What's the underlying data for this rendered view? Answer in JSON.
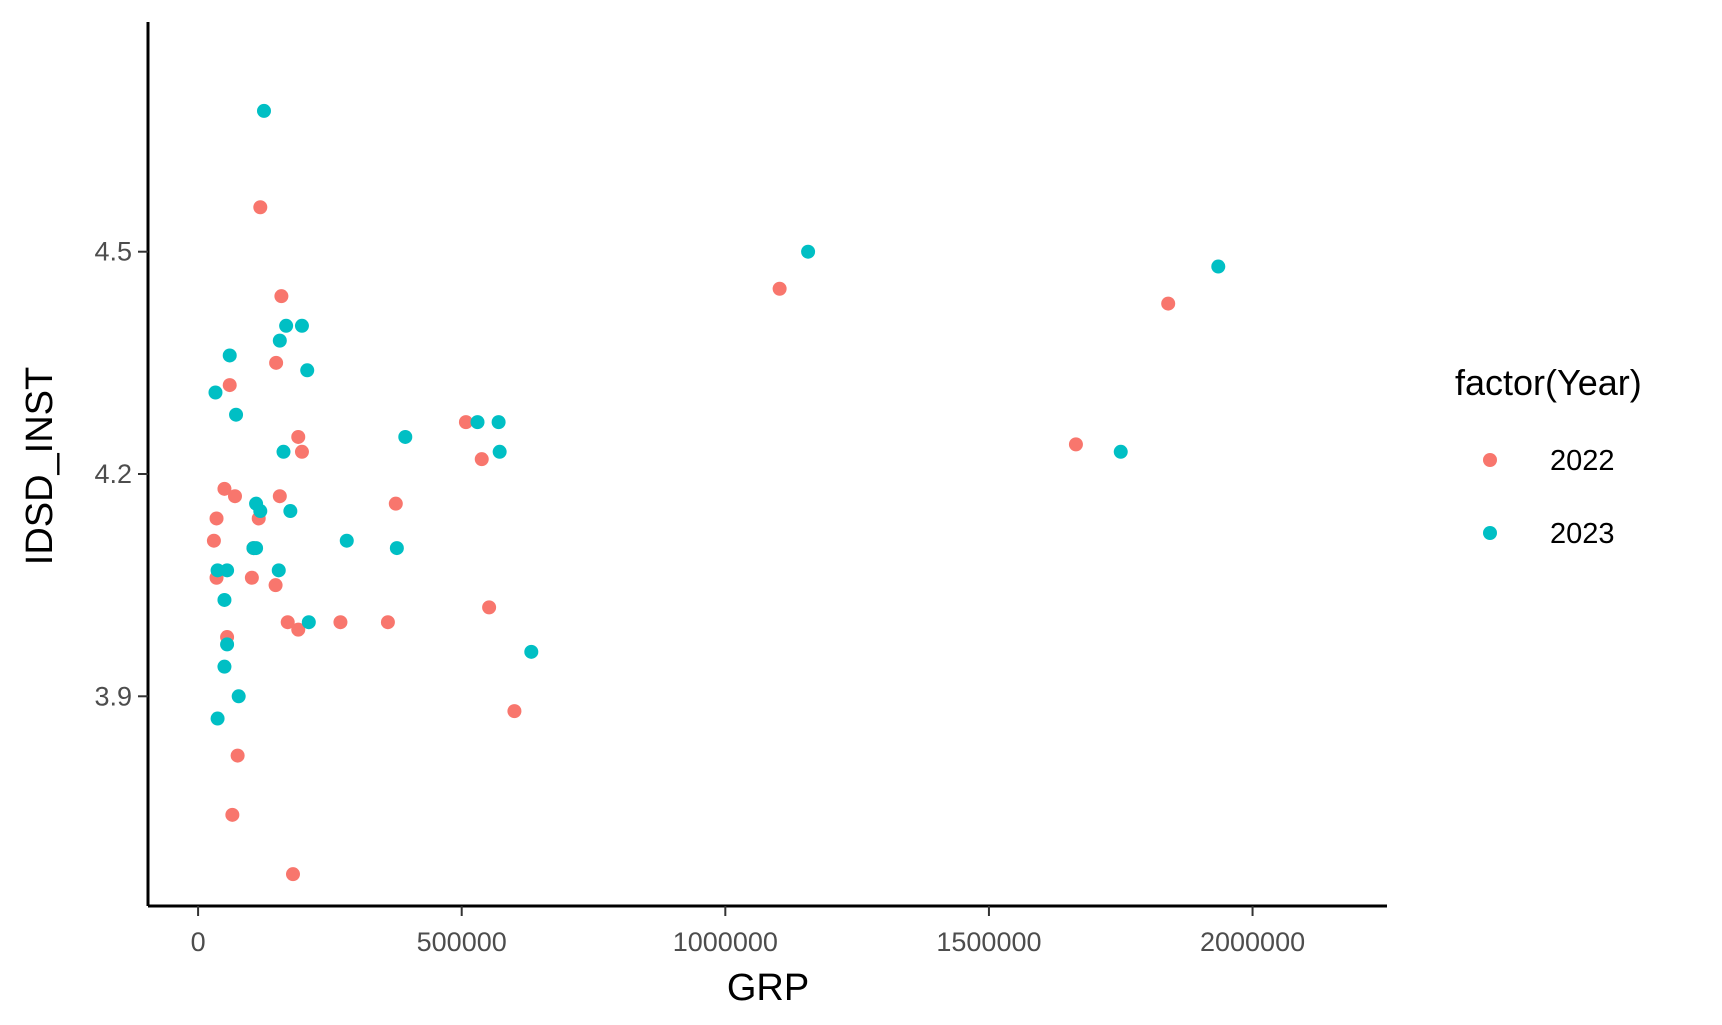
{
  "chart_data": {
    "type": "scatter",
    "title": "",
    "xlabel": "GRP",
    "ylabel": "IDSD_INST",
    "xlim": [
      -95000,
      2255000
    ],
    "ylim": [
      3.617,
      4.81
    ],
    "x_ticks": [
      0,
      500000,
      1000000,
      1500000,
      2000000
    ],
    "x_tick_labels": [
      "0",
      "500000",
      "1000000",
      "1500000",
      "2000000"
    ],
    "y_ticks": [
      3.9,
      4.2,
      4.5
    ],
    "y_tick_labels": [
      "3.9",
      "4.2",
      "4.5"
    ],
    "grid": false,
    "legend": {
      "title": "factor(Year)",
      "placement": "right"
    },
    "series": [
      {
        "name": "2022",
        "color": "#F8766D",
        "points": [
          [
            118000,
            4.56
          ],
          [
            158000,
            4.44
          ],
          [
            148000,
            4.35
          ],
          [
            60000,
            4.32
          ],
          [
            190000,
            4.25
          ],
          [
            197000,
            4.23
          ],
          [
            50000,
            4.18
          ],
          [
            70000,
            4.17
          ],
          [
            155000,
            4.17
          ],
          [
            35000,
            4.14
          ],
          [
            115000,
            4.14
          ],
          [
            30000,
            4.11
          ],
          [
            105000,
            4.1
          ],
          [
            35000,
            4.06
          ],
          [
            102000,
            4.06
          ],
          [
            147000,
            4.05
          ],
          [
            170000,
            4.0
          ],
          [
            190000,
            3.99
          ],
          [
            55000,
            3.98
          ],
          [
            75000,
            3.82
          ],
          [
            65000,
            3.74
          ],
          [
            180000,
            3.66
          ],
          [
            270000,
            4.0
          ],
          [
            360000,
            4.0
          ],
          [
            375000,
            4.16
          ],
          [
            508000,
            4.27
          ],
          [
            538000,
            4.22
          ],
          [
            552000,
            4.02
          ],
          [
            600000,
            3.88
          ],
          [
            1103000,
            4.45
          ],
          [
            1840000,
            4.43
          ],
          [
            1665000,
            4.24
          ]
        ]
      },
      {
        "name": "2023",
        "color": "#00BFC4",
        "points": [
          [
            125000,
            4.69
          ],
          [
            197000,
            4.4
          ],
          [
            167000,
            4.4
          ],
          [
            155000,
            4.38
          ],
          [
            60000,
            4.36
          ],
          [
            207000,
            4.34
          ],
          [
            33000,
            4.31
          ],
          [
            72000,
            4.28
          ],
          [
            162000,
            4.23
          ],
          [
            110000,
            4.16
          ],
          [
            118000,
            4.15
          ],
          [
            175000,
            4.15
          ],
          [
            110000,
            4.1
          ],
          [
            105000,
            4.1
          ],
          [
            55000,
            4.07
          ],
          [
            37000,
            4.07
          ],
          [
            153000,
            4.07
          ],
          [
            50000,
            4.03
          ],
          [
            55000,
            3.97
          ],
          [
            50000,
            3.94
          ],
          [
            77000,
            3.9
          ],
          [
            37000,
            3.87
          ],
          [
            210000,
            4.0
          ],
          [
            282000,
            4.11
          ],
          [
            377000,
            4.1
          ],
          [
            393000,
            4.25
          ],
          [
            530000,
            4.27
          ],
          [
            570000,
            4.27
          ],
          [
            572000,
            4.23
          ],
          [
            632000,
            3.96
          ],
          [
            1157000,
            4.5
          ],
          [
            1935000,
            4.48
          ],
          [
            1750000,
            4.23
          ]
        ]
      }
    ]
  }
}
